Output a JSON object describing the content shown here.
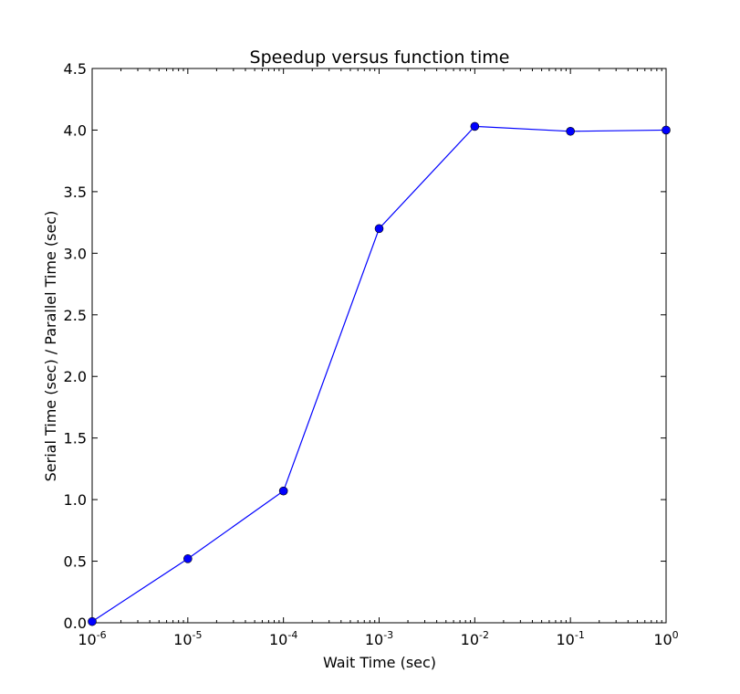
{
  "chart_data": {
    "type": "line",
    "title": "Speedup versus function time",
    "xlabel": "Wait Time (sec)",
    "ylabel": "Serial Time (sec) / Parallel Time (sec)",
    "x_scale": "log",
    "x": [
      1e-06,
      1e-05,
      0.0001,
      0.001,
      0.01,
      0.1,
      1
    ],
    "xlim": [
      1e-06,
      1
    ],
    "ylim": [
      0,
      4.5
    ],
    "x_ticks": [
      {
        "base": "10",
        "exp": "-6",
        "value": 1e-06
      },
      {
        "base": "10",
        "exp": "-5",
        "value": 1e-05
      },
      {
        "base": "10",
        "exp": "-4",
        "value": 0.0001
      },
      {
        "base": "10",
        "exp": "-3",
        "value": 0.001
      },
      {
        "base": "10",
        "exp": "-2",
        "value": 0.01
      },
      {
        "base": "10",
        "exp": "-1",
        "value": 0.1
      },
      {
        "base": "10",
        "exp": "0",
        "value": 1
      }
    ],
    "y_ticks": [
      "0.0",
      "0.5",
      "1.0",
      "1.5",
      "2.0",
      "2.5",
      "3.0",
      "3.5",
      "4.0",
      "4.5"
    ],
    "grid": false,
    "series": [
      {
        "color": "#0000ff",
        "marker": "circle",
        "values": [
          0.01,
          0.52,
          1.07,
          3.2,
          4.03,
          3.99,
          4.0
        ]
      }
    ]
  }
}
